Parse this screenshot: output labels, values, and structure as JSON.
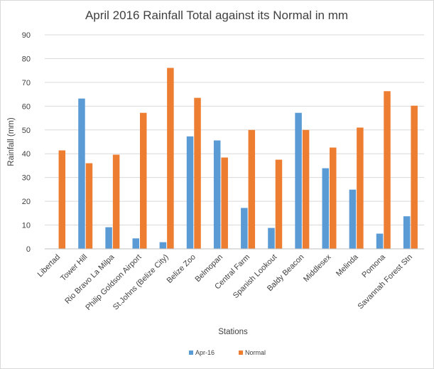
{
  "chart_data": {
    "type": "bar",
    "title": "April 2016 Rainfall Total  against its Normal in mm",
    "xlabel": "Stations",
    "ylabel": "Rainfall (mm)",
    "ylim": [
      0,
      90
    ],
    "yticks": [
      "0",
      "10",
      "20",
      "30",
      "40",
      "50",
      "60",
      "70",
      "80",
      "90"
    ],
    "grid": true,
    "legend_position": "bottom",
    "categories": [
      "Libertad",
      "Tower Hill",
      "Rio Bravo La Milpa",
      "Philip Goldson Airport",
      "St.Johns (Belize City)",
      "Belize Zoo",
      "Belmopan",
      "Central Farm",
      "Spanish Lookout",
      "Baldy Beacon",
      "Middlesex",
      "Melinda",
      "Pomona",
      "Savannah Forest Stn"
    ],
    "series": [
      {
        "name": "Apr-16",
        "color": "#5b9bd5",
        "values": [
          0,
          63.2,
          9.1,
          4.4,
          2.8,
          47.3,
          45.6,
          17.2,
          8.8,
          57.2,
          33.9,
          24.9,
          6.4,
          13.7
        ]
      },
      {
        "name": "Normal",
        "color": "#ed7d31",
        "values": [
          41.4,
          36.0,
          39.6,
          57.2,
          76.1,
          63.5,
          38.4,
          50.0,
          37.5,
          50.0,
          42.6,
          51.0,
          66.3,
          60.2
        ]
      }
    ]
  }
}
